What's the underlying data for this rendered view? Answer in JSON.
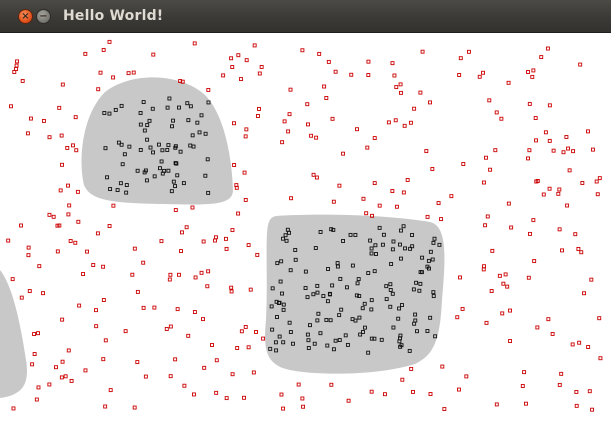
{
  "window": {
    "title": "Hello World!",
    "close_symbol": "×",
    "minimize_symbol": "−"
  },
  "colors": {
    "blob_fill": "#c8c8c8",
    "free_point": "#cc0000",
    "inside_point": "#111111",
    "background": "#ffffff",
    "titlebar": "#3c3b37"
  }
}
